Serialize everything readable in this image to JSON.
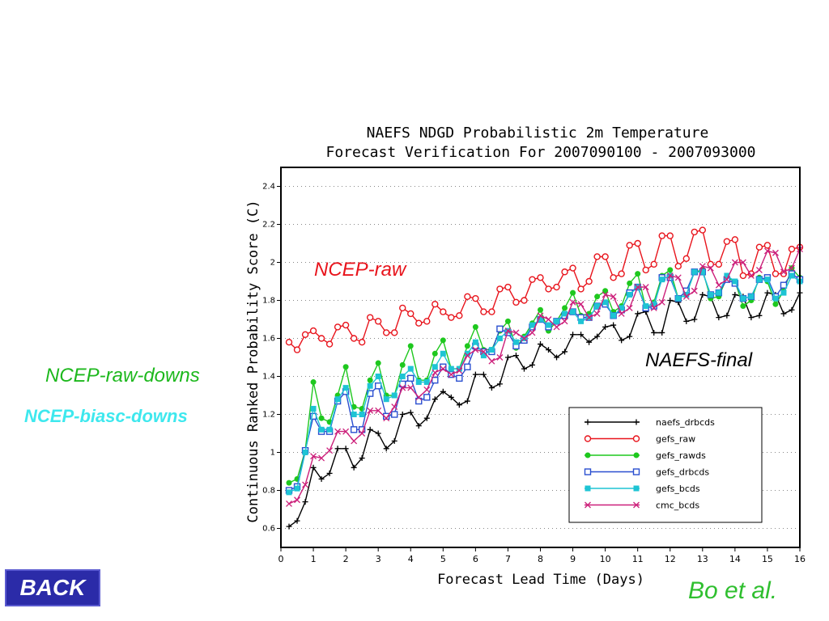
{
  "annotations": {
    "ncep_raw": "NCEP-raw",
    "naefs_final": "NAEFS-final",
    "ncep_raw_downs": "NCEP-raw-downs",
    "ncep_biasc_downs": "NCEP-biasc-downs",
    "credit": "Bo et al."
  },
  "nav": {
    "back_label": "BACK"
  },
  "colors": {
    "naefs_drbcds": "#000000",
    "gefs_raw": "#e8141c",
    "gefs_rawds": "#1ec81e",
    "gefs_drbcds": "#2a4fd0",
    "gefs_bcds": "#1ec4d4",
    "cmc_bcds": "#cc1f7a"
  },
  "chart_data": {
    "type": "line",
    "title": [
      "NAEFS NDGD Probabilistic 2m Temperature",
      "Forecast Verification For 2007090100 - 2007093000"
    ],
    "xlabel": "Forecast Lead Time (Days)",
    "ylabel": "Continuous Ranked Probability Score (C)",
    "xlim": [
      0,
      16
    ],
    "ylim": [
      0.5,
      2.5
    ],
    "xticks": [
      0,
      1,
      2,
      3,
      4,
      5,
      6,
      7,
      8,
      9,
      10,
      11,
      12,
      13,
      14,
      15,
      16
    ],
    "yticks": [
      0.6,
      0.8,
      1,
      1.2,
      1.4,
      1.6,
      1.8,
      2,
      2.2,
      2.4
    ],
    "ytick_labels": [
      "0.6",
      "0.8",
      "1",
      "1.2",
      "1.4",
      "1.6",
      "1.8",
      "2",
      "2.2",
      "2.4"
    ],
    "grid": "horizontal dotted",
    "legend_position": "bottom-right",
    "x": [
      0.25,
      0.5,
      0.75,
      1,
      1.25,
      1.5,
      1.75,
      2,
      2.25,
      2.5,
      2.75,
      3,
      3.25,
      3.5,
      3.75,
      4,
      4.25,
      4.5,
      4.75,
      5,
      5.25,
      5.5,
      5.75,
      6,
      6.25,
      6.5,
      6.75,
      7,
      7.25,
      7.5,
      7.75,
      8,
      8.25,
      8.5,
      8.75,
      9,
      9.25,
      9.5,
      9.75,
      10,
      10.25,
      10.5,
      10.75,
      11,
      11.25,
      11.5,
      11.75,
      12,
      12.25,
      12.5,
      12.75,
      13,
      13.25,
      13.5,
      13.75,
      14,
      14.25,
      14.5,
      14.75,
      15,
      15.25,
      15.5,
      15.75,
      16
    ],
    "series": [
      {
        "name": "naefs_drbcds",
        "marker": "plus",
        "values": [
          0.61,
          0.64,
          0.74,
          0.92,
          0.86,
          0.89,
          1.02,
          1.02,
          0.92,
          0.97,
          1.12,
          1.1,
          1.02,
          1.06,
          1.2,
          1.21,
          1.14,
          1.18,
          1.28,
          1.32,
          1.29,
          1.25,
          1.27,
          1.41,
          1.41,
          1.34,
          1.36,
          1.5,
          1.51,
          1.44,
          1.46,
          1.57,
          1.54,
          1.5,
          1.53,
          1.62,
          1.62,
          1.58,
          1.61,
          1.66,
          1.67,
          1.59,
          1.61,
          1.73,
          1.74,
          1.63,
          1.63,
          1.8,
          1.79,
          1.69,
          1.7,
          1.83,
          1.82,
          1.71,
          1.72,
          1.83,
          1.82,
          1.71,
          1.72,
          1.84,
          1.83,
          1.73,
          1.75,
          1.84
        ]
      },
      {
        "name": "gefs_raw",
        "marker": "circle",
        "values": [
          1.58,
          1.54,
          1.62,
          1.64,
          1.6,
          1.57,
          1.66,
          1.67,
          1.6,
          1.58,
          1.71,
          1.69,
          1.63,
          1.63,
          1.76,
          1.73,
          1.68,
          1.69,
          1.78,
          1.74,
          1.71,
          1.72,
          1.82,
          1.81,
          1.74,
          1.74,
          1.86,
          1.87,
          1.79,
          1.8,
          1.91,
          1.92,
          1.86,
          1.87,
          1.95,
          1.97,
          1.86,
          1.9,
          2.03,
          2.03,
          1.92,
          1.94,
          2.09,
          2.1,
          1.96,
          1.99,
          2.14,
          2.14,
          1.98,
          2.02,
          2.16,
          2.17,
          1.99,
          1.99,
          2.11,
          2.12,
          1.93,
          1.94,
          2.08,
          2.09,
          1.94,
          1.94,
          2.07,
          2.08
        ]
      },
      {
        "name": "gefs_rawds",
        "marker": "dot",
        "values": [
          0.84,
          0.86,
          1.01,
          1.37,
          1.18,
          1.16,
          1.3,
          1.45,
          1.24,
          1.23,
          1.38,
          1.47,
          1.3,
          1.3,
          1.46,
          1.56,
          1.38,
          1.38,
          1.52,
          1.59,
          1.44,
          1.44,
          1.56,
          1.66,
          1.54,
          1.54,
          1.64,
          1.69,
          1.55,
          1.61,
          1.68,
          1.75,
          1.64,
          1.69,
          1.76,
          1.84,
          1.72,
          1.73,
          1.82,
          1.85,
          1.74,
          1.77,
          1.89,
          1.94,
          1.76,
          1.79,
          1.93,
          1.96,
          1.81,
          1.83,
          1.95,
          1.96,
          1.81,
          1.82,
          1.92,
          1.9,
          1.77,
          1.8,
          1.92,
          1.9,
          1.78,
          1.85,
          1.97,
          1.92
        ]
      },
      {
        "name": "gefs_drbcds",
        "marker": "square",
        "values": [
          0.8,
          0.82,
          1.01,
          1.19,
          1.11,
          1.11,
          1.27,
          1.32,
          1.12,
          1.12,
          1.31,
          1.35,
          1.19,
          1.2,
          1.36,
          1.39,
          1.27,
          1.29,
          1.38,
          1.45,
          1.41,
          1.39,
          1.45,
          1.56,
          1.53,
          1.53,
          1.65,
          1.63,
          1.56,
          1.59,
          1.66,
          1.7,
          1.66,
          1.69,
          1.72,
          1.74,
          1.71,
          1.71,
          1.77,
          1.78,
          1.72,
          1.75,
          1.84,
          1.87,
          1.76,
          1.77,
          1.92,
          1.92,
          1.81,
          1.85,
          1.95,
          1.95,
          1.83,
          1.84,
          1.91,
          1.89,
          1.81,
          1.82,
          1.91,
          1.92,
          1.82,
          1.88,
          1.94,
          1.91
        ]
      },
      {
        "name": "gefs_bcds",
        "marker": "filled-square",
        "values": [
          0.79,
          0.81,
          1.0,
          1.23,
          1.12,
          1.12,
          1.28,
          1.34,
          1.2,
          1.2,
          1.35,
          1.4,
          1.28,
          1.3,
          1.4,
          1.44,
          1.37,
          1.37,
          1.45,
          1.52,
          1.44,
          1.44,
          1.52,
          1.58,
          1.51,
          1.54,
          1.6,
          1.64,
          1.58,
          1.6,
          1.67,
          1.7,
          1.67,
          1.69,
          1.73,
          1.74,
          1.69,
          1.71,
          1.77,
          1.79,
          1.72,
          1.76,
          1.83,
          1.87,
          1.77,
          1.78,
          1.91,
          1.93,
          1.81,
          1.83,
          1.95,
          1.95,
          1.83,
          1.84,
          1.93,
          1.9,
          1.81,
          1.82,
          1.91,
          1.91,
          1.81,
          1.84,
          1.93,
          1.9
        ]
      },
      {
        "name": "cmc_bcds",
        "marker": "x",
        "values": [
          0.73,
          0.75,
          0.83,
          0.98,
          0.97,
          1.01,
          1.11,
          1.11,
          1.06,
          1.1,
          1.22,
          1.22,
          1.18,
          1.24,
          1.34,
          1.34,
          1.29,
          1.33,
          1.42,
          1.44,
          1.41,
          1.43,
          1.51,
          1.54,
          1.53,
          1.48,
          1.5,
          1.64,
          1.63,
          1.6,
          1.63,
          1.72,
          1.7,
          1.66,
          1.69,
          1.79,
          1.78,
          1.71,
          1.73,
          1.83,
          1.82,
          1.73,
          1.76,
          1.87,
          1.87,
          1.76,
          1.79,
          1.93,
          1.92,
          1.82,
          1.85,
          1.98,
          1.97,
          1.88,
          1.91,
          2.0,
          2.0,
          1.93,
          1.96,
          2.06,
          2.05,
          1.95,
          1.97,
          2.07
        ]
      }
    ]
  }
}
